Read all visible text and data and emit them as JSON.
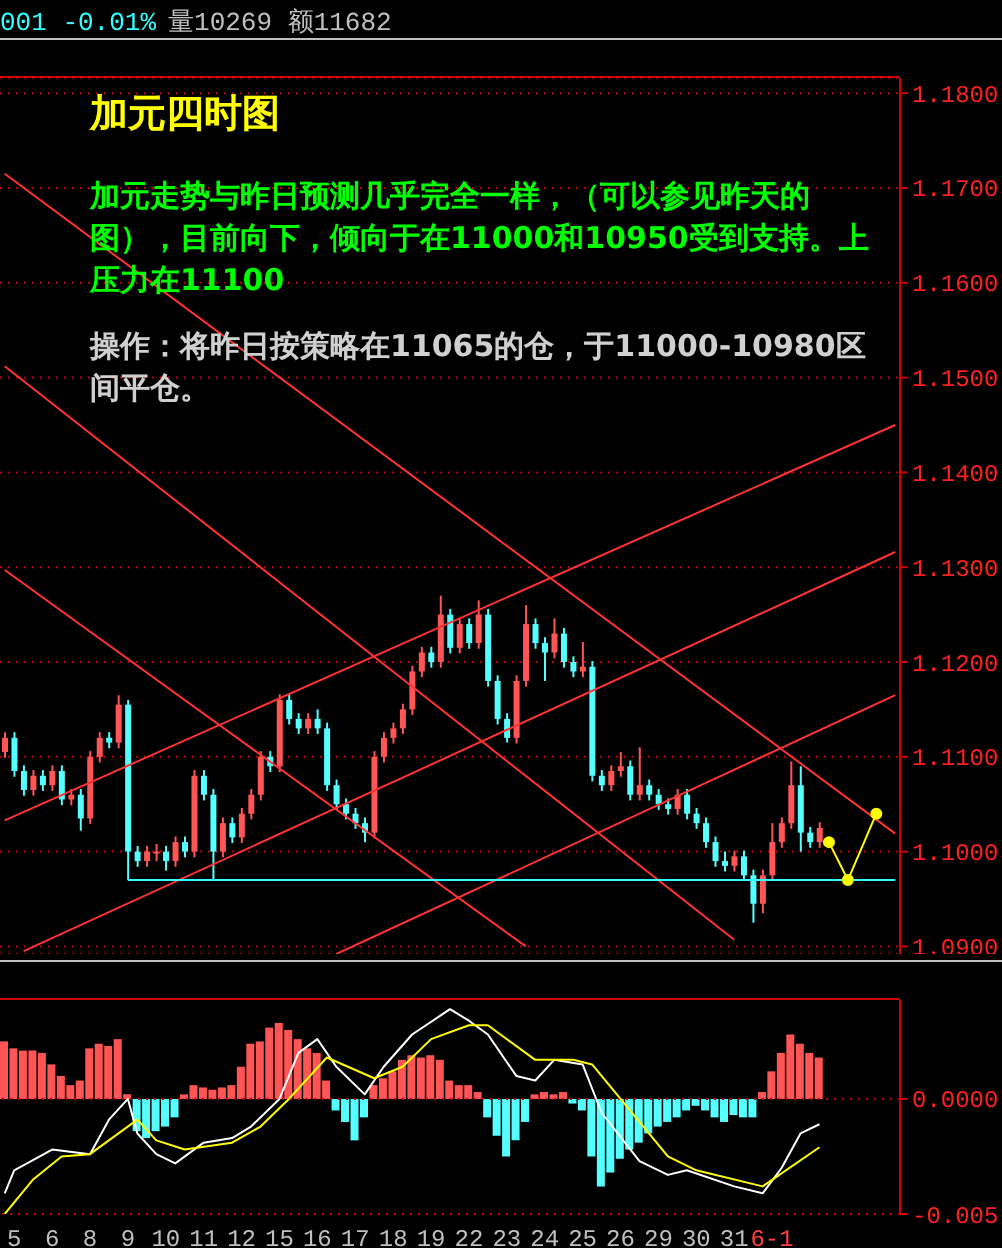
{
  "chart_data": [
    {
      "type": "candlestick",
      "title": "加元四时图",
      "subtitle": "加元走势与昨日预测几乎完全一样，（可以参见昨天的图），目前向下，倾向于在11000和10950受到支持。上压力在11100",
      "annotations": [
        "001 -0.01%",
        "量10269 额11682",
        "操作：将昨日按策略在11065的仓，于11000-10980区间平仓。"
      ],
      "categories": [
        null,
        null,
        null,
        null,
        null,
        null,
        null,
        null,
        null,
        null,
        null,
        null,
        null,
        null,
        null,
        null,
        null,
        null,
        null,
        null,
        null,
        null,
        null,
        null,
        null,
        null,
        null,
        null,
        null,
        null,
        null,
        null,
        null,
        null,
        null,
        null,
        null,
        null,
        null,
        null,
        null,
        null,
        null,
        null,
        null,
        null,
        null,
        null,
        null,
        null,
        null,
        null,
        null,
        null,
        null,
        null,
        null,
        null,
        null,
        null,
        null,
        null,
        null,
        null,
        null,
        null,
        null,
        null,
        null,
        null,
        null,
        null,
        null,
        null,
        null,
        null,
        null,
        null,
        null,
        null,
        null,
        null,
        null,
        null,
        null,
        null,
        null,
        null,
        null,
        null,
        null,
        null,
        null,
        null,
        null
      ],
      "ylim": [
        1.0892,
        1.1816
      ],
      "yticks": [
        {
          "value": 1.09,
          "label": "1.0900"
        },
        {
          "value": 1.1,
          "label": "1.1000"
        },
        {
          "value": 1.11,
          "label": "1.1100"
        },
        {
          "value": 1.12,
          "label": "1.1200"
        },
        {
          "value": 1.13,
          "label": "1.1300"
        },
        {
          "value": 1.14,
          "label": "1.1400"
        },
        {
          "value": 1.15,
          "label": "1.1500"
        },
        {
          "value": 1.16,
          "label": "1.1600"
        },
        {
          "value": 1.17,
          "label": "1.1700"
        },
        {
          "value": 1.18,
          "label": "1.1800"
        }
      ],
      "grid": "y",
      "tick_labels": "y",
      "series": [
        {
          "ohlc": [
            [
              1.1105,
              1.1126,
              1.1099,
              1.112
            ],
            [
              1.112,
              1.1126,
              1.1079,
              1.1085
            ],
            [
              1.1085,
              1.1091,
              1.1059,
              1.1065
            ],
            [
              1.1065,
              1.1086,
              1.1059,
              1.108
            ],
            [
              1.108,
              1.1086,
              1.1064,
              1.107
            ],
            [
              1.107,
              1.1091,
              1.1064,
              1.1085
            ],
            [
              1.1085,
              1.1091,
              1.1049,
              1.1055
            ],
            [
              1.1055,
              1.1066,
              1.1049,
              1.106
            ],
            [
              1.106,
              1.1066,
              1.1022,
              1.1035
            ],
            [
              1.1035,
              1.1106,
              1.1029,
              1.11
            ],
            [
              1.11,
              1.1126,
              1.1094,
              1.112
            ],
            [
              1.112,
              1.1126,
              1.1109,
              1.1115
            ],
            [
              1.1115,
              1.1165,
              1.1109,
              1.1155
            ],
            [
              1.1155,
              1.116,
              1.097,
              1.1
            ],
            [
              1.1,
              1.1006,
              1.0984,
              1.099
            ],
            [
              1.099,
              1.1006,
              1.0984,
              1.1
            ],
            [
              1.1,
              1.1008,
              1.099,
              1.1
            ],
            [
              1.1,
              1.1006,
              1.098,
              1.099
            ],
            [
              1.099,
              1.1016,
              1.0984,
              1.101
            ],
            [
              1.101,
              1.1016,
              1.0994,
              1.1
            ],
            [
              1.1,
              1.1086,
              1.0994,
              1.108
            ],
            [
              1.108,
              1.1086,
              1.1054,
              1.106
            ],
            [
              1.106,
              1.1066,
              1.097,
              1.1
            ],
            [
              1.1,
              1.1036,
              1.0994,
              1.103
            ],
            [
              1.103,
              1.1036,
              1.1009,
              1.1015
            ],
            [
              1.1015,
              1.1046,
              1.1009,
              1.104
            ],
            [
              1.104,
              1.1066,
              1.1034,
              1.106
            ],
            [
              1.106,
              1.1106,
              1.1054,
              1.11
            ],
            [
              1.11,
              1.1106,
              1.1084,
              1.109
            ],
            [
              1.109,
              1.1166,
              1.1084,
              1.116
            ],
            [
              1.116,
              1.1166,
              1.1134,
              1.114
            ],
            [
              1.114,
              1.1146,
              1.1124,
              1.113
            ],
            [
              1.113,
              1.1146,
              1.1124,
              1.114
            ],
            [
              1.114,
              1.115,
              1.1124,
              1.113
            ],
            [
              1.113,
              1.1136,
              1.1064,
              1.107
            ],
            [
              1.107,
              1.1076,
              1.1044,
              1.105
            ],
            [
              1.105,
              1.1056,
              1.1034,
              1.104
            ],
            [
              1.104,
              1.1046,
              1.1024,
              1.103
            ],
            [
              1.103,
              1.1036,
              1.101,
              1.102
            ],
            [
              1.102,
              1.1106,
              1.1014,
              1.11
            ],
            [
              1.11,
              1.1126,
              1.1094,
              1.112
            ],
            [
              1.112,
              1.1136,
              1.1114,
              1.113
            ],
            [
              1.113,
              1.1156,
              1.1124,
              1.115
            ],
            [
              1.115,
              1.1196,
              1.1144,
              1.119
            ],
            [
              1.119,
              1.1216,
              1.1184,
              1.121
            ],
            [
              1.121,
              1.1216,
              1.1194,
              1.12
            ],
            [
              1.12,
              1.127,
              1.1194,
              1.125
            ],
            [
              1.125,
              1.1256,
              1.1209,
              1.1215
            ],
            [
              1.1215,
              1.1246,
              1.1209,
              1.124
            ],
            [
              1.124,
              1.1246,
              1.1214,
              1.122
            ],
            [
              1.122,
              1.1265,
              1.1214,
              1.125
            ],
            [
              1.125,
              1.1256,
              1.1174,
              1.118
            ],
            [
              1.118,
              1.1186,
              1.1134,
              1.114
            ],
            [
              1.114,
              1.1146,
              1.1115,
              1.112
            ],
            [
              1.112,
              1.1186,
              1.1114,
              1.118
            ],
            [
              1.118,
              1.126,
              1.1174,
              1.124
            ],
            [
              1.124,
              1.1246,
              1.1214,
              1.122
            ],
            [
              1.122,
              1.1226,
              1.118,
              1.121
            ],
            [
              1.121,
              1.1246,
              1.1204,
              1.123
            ],
            [
              1.123,
              1.1236,
              1.1194,
              1.12
            ],
            [
              1.12,
              1.1206,
              1.1184,
              1.119
            ],
            [
              1.119,
              1.1221,
              1.1184,
              1.1195
            ],
            [
              1.1195,
              1.1201,
              1.1074,
              1.108
            ],
            [
              1.108,
              1.1086,
              1.1064,
              1.107
            ],
            [
              1.107,
              1.1091,
              1.1064,
              1.1085
            ],
            [
              1.1085,
              1.1105,
              1.1079,
              1.109
            ],
            [
              1.109,
              1.1096,
              1.1054,
              1.106
            ],
            [
              1.106,
              1.111,
              1.1054,
              1.107
            ],
            [
              1.107,
              1.1076,
              1.1054,
              1.106
            ],
            [
              1.106,
              1.1066,
              1.1044,
              1.105
            ],
            [
              1.105,
              1.1056,
              1.1039,
              1.1045
            ],
            [
              1.1045,
              1.1066,
              1.1039,
              1.106
            ],
            [
              1.106,
              1.1066,
              1.1034,
              1.104
            ],
            [
              1.104,
              1.1046,
              1.1024,
              1.103
            ],
            [
              1.103,
              1.1036,
              1.1004,
              1.101
            ],
            [
              1.101,
              1.1016,
              1.0984,
              1.099
            ],
            [
              1.099,
              1.1,
              1.0979,
              1.0985
            ],
            [
              1.0985,
              1.1001,
              1.0979,
              1.0995
            ],
            [
              1.0995,
              1.1001,
              1.0969,
              1.0975
            ],
            [
              1.0975,
              1.0981,
              1.0925,
              1.0945
            ],
            [
              1.0945,
              1.0981,
              1.0935,
              1.0975
            ],
            [
              1.0975,
              1.103,
              1.0969,
              1.101
            ],
            [
              1.101,
              1.1036,
              1.1004,
              1.103
            ],
            [
              1.103,
              1.1095,
              1.1024,
              1.107
            ],
            [
              1.107,
              1.109,
              1.1,
              1.102
            ],
            [
              1.102,
              1.1026,
              1.1004,
              1.101
            ],
            [
              1.101,
              1.1031,
              1.1004,
              1.1025
            ],
            null,
            null,
            null,
            null,
            null,
            null,
            null,
            null
          ],
          "colors": [
            "#ff5555",
            "#55ffff",
            "#55ffff",
            "#ff5555",
            "#55ffff",
            "#ff5555",
            "#55ffff",
            "#ff5555",
            "#55ffff",
            "#ff5555",
            "#ff5555",
            "#55ffff",
            "#ff5555",
            "#55ffff",
            "#55ffff",
            "#ff5555",
            "#ff5555",
            "#55ffff",
            "#ff5555",
            "#55ffff",
            "#ff5555",
            "#55ffff",
            "#55ffff",
            "#ff5555",
            "#55ffff",
            "#ff5555",
            "#ff5555",
            "#ff5555",
            "#55ffff",
            "#ff5555",
            "#55ffff",
            "#55ffff",
            "#ff5555",
            "#55ffff",
            "#55ffff",
            "#55ffff",
            "#55ffff",
            "#55ffff",
            "#55ffff",
            "#ff5555",
            "#ff5555",
            "#ff5555",
            "#ff5555",
            "#ff5555",
            "#ff5555",
            "#55ffff",
            "#ff5555",
            "#55ffff",
            "#ff5555",
            "#55ffff",
            "#ff5555",
            "#55ffff",
            "#55ffff",
            "#55ffff",
            "#ff5555",
            "#ff5555",
            "#55ffff",
            "#55ffff",
            "#ff5555",
            "#55ffff",
            "#55ffff",
            "#ff5555",
            "#55ffff",
            "#55ffff",
            "#ff5555",
            "#ff5555",
            "#55ffff",
            "#ff5555",
            "#55ffff",
            "#55ffff",
            "#55ffff",
            "#ff5555",
            "#55ffff",
            "#55ffff",
            "#55ffff",
            "#55ffff",
            "#55ffff",
            "#ff5555",
            "#55ffff",
            "#55ffff",
            "#ff5555",
            "#ff5555",
            "#ff5555",
            "#ff5555",
            "#55ffff",
            "#55ffff",
            "#ff5555",
            null,
            null,
            null,
            null,
            null,
            null,
            null,
            null
          ]
        },
        {
          "type": "line",
          "color": "#ff3333",
          "values": [
            1.1715,
            null,
            null,
            null,
            null,
            null,
            null,
            null,
            null,
            null,
            null,
            null,
            null,
            null,
            null,
            null,
            null,
            null,
            null,
            null,
            null,
            null,
            null,
            null,
            null,
            null,
            null,
            null,
            null,
            null,
            null,
            null,
            null,
            null,
            null,
            null,
            null,
            null,
            null,
            null,
            null,
            null,
            null,
            null,
            null,
            null,
            null,
            null,
            null,
            null,
            null,
            null,
            null,
            null,
            null,
            null,
            null,
            null,
            null,
            null,
            null,
            null,
            null,
            null,
            null,
            null,
            null,
            null,
            null,
            null,
            null,
            null,
            null,
            null,
            null,
            null,
            null,
            null,
            null,
            null,
            null,
            null,
            null,
            null,
            null,
            null,
            null,
            null,
            null,
            null,
            null,
            null,
            null,
            null,
            1.1019
          ]
        },
        {
          "type": "line",
          "color": "#ff3333",
          "values": [
            1.1512,
            null,
            null,
            null,
            null,
            null,
            null,
            null,
            null,
            null,
            null,
            null,
            null,
            null,
            null,
            null,
            null,
            null,
            null,
            null,
            null,
            null,
            null,
            null,
            null,
            null,
            null,
            null,
            null,
            null,
            null,
            null,
            null,
            null,
            null,
            null,
            null,
            null,
            null,
            null,
            null,
            null,
            null,
            null,
            null,
            null,
            null,
            null,
            null,
            null,
            null,
            null,
            null,
            null,
            null,
            null,
            null,
            null,
            null,
            null,
            null,
            null,
            null,
            null,
            null,
            null,
            null,
            null,
            null,
            null,
            null,
            null,
            null,
            null,
            null,
            null,
            null,
            1.0907,
            null,
            null,
            null,
            null,
            null,
            null,
            null,
            null,
            null,
            null,
            null,
            null,
            null,
            null,
            null,
            null,
            null
          ]
        },
        {
          "type": "line",
          "color": "#ff3333",
          "values": [
            1.1297,
            null,
            null,
            null,
            null,
            null,
            null,
            null,
            null,
            null,
            null,
            null,
            null,
            null,
            null,
            null,
            null,
            null,
            null,
            null,
            null,
            null,
            null,
            null,
            null,
            null,
            null,
            null,
            null,
            null,
            null,
            null,
            null,
            null,
            null,
            null,
            null,
            null,
            null,
            null,
            null,
            null,
            null,
            null,
            null,
            null,
            null,
            null,
            null,
            null,
            null,
            null,
            null,
            null,
            null,
            1.09,
            null,
            null,
            null,
            null,
            null,
            null,
            null,
            null,
            null,
            null,
            null,
            null,
            null,
            null,
            null,
            null,
            null,
            null,
            null,
            null,
            null,
            null,
            null,
            null,
            null,
            null,
            null,
            null,
            null,
            null,
            null,
            null,
            null,
            null,
            null,
            null,
            null,
            null,
            null
          ]
        },
        {
          "type": "line",
          "color": "#ff3333",
          "values": [
            1.1033,
            null,
            null,
            null,
            null,
            null,
            null,
            null,
            null,
            null,
            null,
            null,
            null,
            null,
            null,
            null,
            null,
            null,
            null,
            null,
            null,
            null,
            null,
            null,
            null,
            null,
            null,
            null,
            null,
            null,
            null,
            null,
            null,
            null,
            null,
            null,
            null,
            null,
            null,
            null,
            null,
            null,
            null,
            null,
            null,
            null,
            null,
            null,
            null,
            null,
            null,
            null,
            null,
            null,
            null,
            null,
            null,
            null,
            null,
            null,
            null,
            null,
            null,
            null,
            null,
            null,
            null,
            null,
            null,
            null,
            null,
            null,
            null,
            null,
            null,
            null,
            null,
            null,
            null,
            null,
            null,
            null,
            null,
            null,
            null,
            null,
            null,
            null,
            null,
            null,
            null,
            null,
            null,
            null,
            1.145
          ]
        },
        {
          "type": "line",
          "color": "#ff3333",
          "values": [
            null,
            null,
            1.0895,
            null,
            null,
            null,
            null,
            null,
            null,
            null,
            null,
            null,
            null,
            null,
            null,
            null,
            null,
            null,
            null,
            null,
            null,
            null,
            null,
            null,
            null,
            null,
            null,
            null,
            null,
            null,
            null,
            null,
            null,
            null,
            null,
            null,
            null,
            null,
            null,
            null,
            null,
            null,
            null,
            null,
            null,
            null,
            null,
            null,
            null,
            null,
            null,
            null,
            null,
            null,
            null,
            null,
            null,
            null,
            null,
            null,
            null,
            null,
            null,
            null,
            null,
            null,
            null,
            null,
            null,
            null,
            null,
            null,
            null,
            null,
            null,
            null,
            null,
            null,
            null,
            null,
            null,
            null,
            null,
            null,
            null,
            null,
            null,
            null,
            null,
            null,
            null,
            null,
            null,
            null,
            1.1316
          ]
        },
        {
          "type": "line",
          "color": "#ff3333",
          "values": [
            null,
            null,
            null,
            null,
            null,
            null,
            null,
            null,
            null,
            null,
            null,
            null,
            null,
            null,
            null,
            null,
            null,
            null,
            null,
            null,
            null,
            null,
            null,
            null,
            null,
            null,
            null,
            null,
            null,
            null,
            null,
            null,
            null,
            null,
            null,
            1.0892,
            null,
            null,
            null,
            null,
            null,
            null,
            null,
            null,
            null,
            null,
            null,
            null,
            null,
            null,
            null,
            null,
            null,
            null,
            null,
            null,
            null,
            null,
            null,
            null,
            null,
            null,
            null,
            null,
            null,
            null,
            null,
            null,
            null,
            null,
            null,
            null,
            null,
            null,
            null,
            null,
            null,
            null,
            null,
            null,
            null,
            null,
            null,
            null,
            null,
            null,
            null,
            null,
            null,
            null,
            null,
            null,
            null,
            null,
            1.1165
          ]
        },
        {
          "type": "line",
          "color": "#33ffff",
          "values": [
            null,
            null,
            null,
            null,
            null,
            null,
            null,
            null,
            null,
            null,
            null,
            null,
            null,
            1.097,
            null,
            null,
            null,
            null,
            null,
            null,
            null,
            null,
            null,
            null,
            null,
            null,
            null,
            null,
            null,
            null,
            null,
            null,
            null,
            null,
            null,
            null,
            null,
            null,
            null,
            null,
            null,
            null,
            null,
            null,
            null,
            null,
            null,
            null,
            null,
            null,
            null,
            null,
            null,
            null,
            null,
            null,
            null,
            null,
            null,
            null,
            null,
            null,
            null,
            null,
            null,
            null,
            null,
            null,
            null,
            null,
            null,
            null,
            null,
            null,
            null,
            null,
            null,
            null,
            null,
            null,
            null,
            null,
            null,
            null,
            null,
            null,
            null,
            null,
            null,
            null,
            null,
            null,
            null,
            null,
            1.097
          ]
        },
        {
          "type": "line",
          "color": "#ffff00",
          "marker": "circle",
          "values": [
            null,
            null,
            null,
            null,
            null,
            null,
            null,
            null,
            null,
            null,
            null,
            null,
            null,
            null,
            null,
            null,
            null,
            null,
            null,
            null,
            null,
            null,
            null,
            null,
            null,
            null,
            null,
            null,
            null,
            null,
            null,
            null,
            null,
            null,
            null,
            null,
            null,
            null,
            null,
            null,
            null,
            null,
            null,
            null,
            null,
            null,
            null,
            null,
            null,
            null,
            null,
            null,
            null,
            null,
            null,
            null,
            null,
            null,
            null,
            null,
            null,
            null,
            null,
            null,
            null,
            null,
            null,
            null,
            null,
            null,
            null,
            null,
            null,
            null,
            null,
            null,
            null,
            null,
            null,
            null,
            null,
            null,
            null,
            null,
            null,
            null,
            null,
            1.101,
            null,
            1.097,
            null,
            null,
            1.104,
            null,
            null
          ]
        }
      ]
    },
    {
      "type": "bar",
      "ylim": [
        -0.005,
        0.0043
      ],
      "categories": [
        null,
        "5",
        null,
        null,
        null,
        "6",
        null,
        null,
        null,
        "8",
        null,
        null,
        null,
        "9",
        null,
        null,
        null,
        "10",
        null,
        null,
        null,
        "11",
        null,
        null,
        null,
        "12",
        null,
        null,
        null,
        "15",
        null,
        null,
        null,
        "16",
        null,
        null,
        null,
        "17",
        null,
        null,
        null,
        "18",
        null,
        null,
        null,
        "19",
        null,
        null,
        null,
        "22",
        null,
        null,
        null,
        "23",
        null,
        null,
        null,
        "24",
        null,
        null,
        null,
        "25",
        null,
        null,
        null,
        "26",
        null,
        null,
        null,
        "29",
        null,
        null,
        null,
        "30",
        null,
        null,
        null,
        "31",
        null,
        null,
        null,
        "6-1",
        null,
        null,
        null,
        null,
        null,
        null,
        null,
        null,
        null,
        null,
        null,
        null,
        null
      ],
      "yticks": [
        {
          "value": -0.005,
          "label": "-0.005"
        },
        {
          "value": 0,
          "label": "0.0000"
        }
      ],
      "ref_lines": [
        {
          "axis": "y",
          "value": 0,
          "color": "#c00000",
          "line_style": "dotted"
        },
        {
          "axis": "y",
          "value": -0.005,
          "color": "#c00000",
          "line_style": "dotted"
        }
      ],
      "series": [
        {
          "values": [
            0.0025,
            0.0022,
            0.0021,
            0.0021,
            0.002,
            0.0015,
            0.001,
            0.0006,
            0.0008,
            0.0022,
            0.0024,
            0.0023,
            0.0026,
            0.0002,
            -0.0014,
            -0.0017,
            -0.0014,
            -0.0012,
            -0.0008,
            0.0002,
            0.0006,
            0.0005,
            0.0004,
            0.0005,
            0.0006,
            0.0014,
            0.0024,
            0.0025,
            0.0031,
            0.0033,
            0.003,
            0.0026,
            0.0022,
            0.002,
            0.0008,
            -0.0005,
            -0.001,
            -0.0018,
            -0.0008,
            0.0006,
            0.0009,
            0.0012,
            0.0017,
            0.0019,
            0.0018,
            0.0019,
            0.0017,
            0.0008,
            0.0006,
            0.0006,
            0.0003,
            -0.0008,
            -0.0016,
            -0.0025,
            -0.0018,
            -0.001,
            0.0002,
            0.0003,
            0.0002,
            0.0003,
            -0.0002,
            -0.0005,
            -0.0025,
            -0.0038,
            -0.0032,
            -0.0026,
            -0.0022,
            -0.0019,
            -0.0015,
            -0.0012,
            -0.001,
            -0.0008,
            -0.0005,
            -0.0003,
            -0.0005,
            -0.0008,
            -0.001,
            -0.0007,
            -0.0008,
            -0.0008,
            0.0003,
            0.0012,
            0.002,
            0.0028,
            0.0024,
            0.002,
            0.0018,
            null,
            null,
            null,
            null,
            null,
            null,
            null,
            null
          ],
          "colors": [
            "#ff5555",
            "#ff5555",
            "#ff5555",
            "#ff5555",
            "#ff5555",
            "#ff5555",
            "#ff5555",
            "#ff5555",
            "#ff5555",
            "#ff5555",
            "#ff5555",
            "#ff5555",
            "#ff5555",
            "#ff5555",
            "#55ffff",
            "#55ffff",
            "#55ffff",
            "#55ffff",
            "#55ffff",
            "#ff5555",
            "#ff5555",
            "#ff5555",
            "#ff5555",
            "#ff5555",
            "#ff5555",
            "#ff5555",
            "#ff5555",
            "#ff5555",
            "#ff5555",
            "#ff5555",
            "#ff5555",
            "#ff5555",
            "#ff5555",
            "#ff5555",
            "#ff5555",
            "#55ffff",
            "#55ffff",
            "#55ffff",
            "#55ffff",
            "#ff5555",
            "#ff5555",
            "#ff5555",
            "#ff5555",
            "#ff5555",
            "#ff5555",
            "#ff5555",
            "#ff5555",
            "#ff5555",
            "#ff5555",
            "#ff5555",
            "#ff5555",
            "#55ffff",
            "#55ffff",
            "#55ffff",
            "#55ffff",
            "#55ffff",
            "#ff5555",
            "#ff5555",
            "#ff5555",
            "#ff5555",
            "#55ffff",
            "#55ffff",
            "#55ffff",
            "#55ffff",
            "#55ffff",
            "#55ffff",
            "#55ffff",
            "#55ffff",
            "#55ffff",
            "#55ffff",
            "#55ffff",
            "#55ffff",
            "#55ffff",
            "#55ffff",
            "#55ffff",
            "#55ffff",
            "#55ffff",
            "#55ffff",
            "#55ffff",
            "#55ffff",
            "#ff5555",
            "#ff5555",
            "#ff5555",
            "#ff5555",
            "#ff5555",
            "#ff5555",
            "#ff5555",
            null,
            null,
            null,
            null,
            null,
            null,
            null,
            null
          ]
        },
        {
          "type": "line",
          "color": "#ffffff",
          "values": [
            -0.0041,
            -0.0031,
            null,
            null,
            null,
            -0.0022,
            null,
            null,
            null,
            -0.0024,
            null,
            -0.0009,
            null,
            0,
            -0.0015,
            null,
            -0.0024,
            null,
            -0.0028,
            null,
            null,
            -0.0019,
            null,
            null,
            -0.0017,
            null,
            -0.0012,
            null,
            null,
            0,
            null,
            0.002,
            null,
            0.0026,
            null,
            0.0014,
            null,
            null,
            0.0002,
            null,
            0.0014,
            null,
            null,
            0.0028,
            null,
            null,
            null,
            0.0039,
            null,
            0.0034,
            null,
            0.0028,
            null,
            null,
            0.001,
            null,
            0.0008,
            null,
            0.0017,
            null,
            null,
            0.0015,
            null,
            -0.0006,
            null,
            null,
            null,
            -0.0027,
            null,
            null,
            -0.0033,
            null,
            -0.0031,
            null,
            null,
            null,
            null,
            -0.0038,
            null,
            null,
            -0.0041,
            null,
            -0.003,
            null,
            -0.0015,
            null,
            -0.0011,
            null,
            null,
            null,
            null,
            null,
            null,
            null,
            null
          ]
        },
        {
          "type": "line",
          "color": "#ffff00",
          "values": [
            -0.005,
            null,
            null,
            -0.0035,
            null,
            null,
            -0.0025,
            null,
            null,
            -0.0024,
            null,
            null,
            null,
            null,
            -0.0009,
            null,
            -0.0018,
            null,
            null,
            -0.0022,
            null,
            null,
            null,
            null,
            -0.0019,
            null,
            null,
            -0.0012,
            null,
            null,
            0,
            null,
            null,
            null,
            0.0018,
            null,
            null,
            null,
            null,
            0.0009,
            null,
            null,
            0.0014,
            null,
            null,
            0.0026,
            null,
            null,
            null,
            0.0032,
            null,
            0.0032,
            null,
            null,
            null,
            null,
            0.0017,
            null,
            null,
            null,
            0.0017,
            null,
            0.0015,
            null,
            null,
            0,
            null,
            null,
            null,
            null,
            -0.0025,
            null,
            null,
            -0.0031,
            null,
            null,
            null,
            null,
            null,
            null,
            -0.0038,
            null,
            null,
            null,
            null,
            null,
            -0.0021,
            null,
            null,
            null,
            null,
            null,
            null,
            null,
            null
          ]
        }
      ]
    }
  ]
}
